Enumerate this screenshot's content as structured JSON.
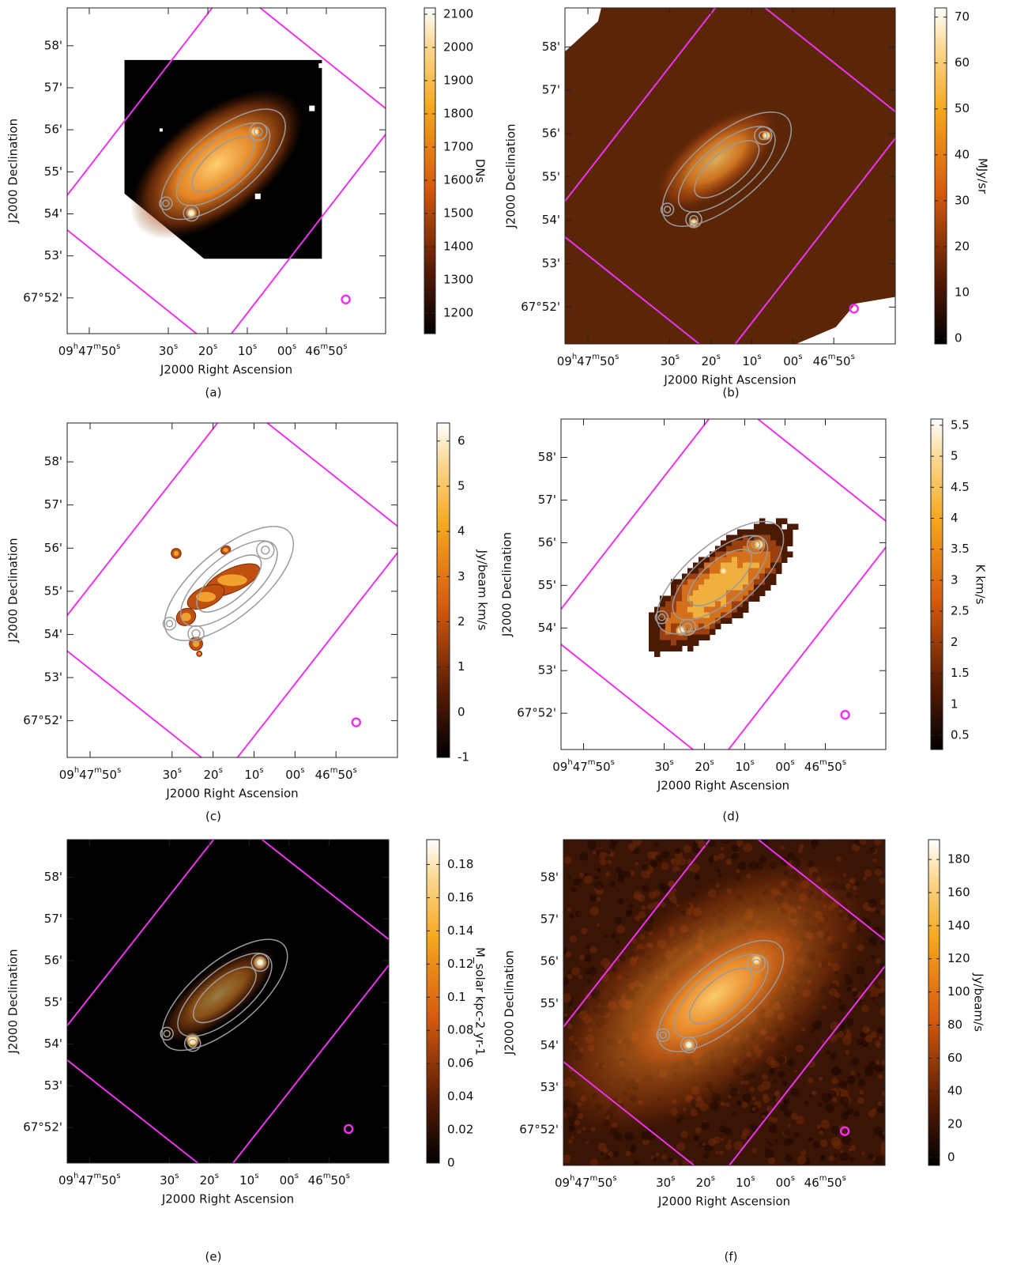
{
  "chart_data": [
    {
      "type": "image",
      "panel_label": "(a)",
      "xlabel": "J2000 Right Ascension",
      "ylabel": "J2000 Declination",
      "xlim": [
        55.6,
        -25
      ],
      "ylim": [
        51.15,
        58.9
      ],
      "xticks": [
        {
          "value": 50,
          "label": "09h47m50s"
        },
        {
          "value": 30,
          "label": "30s"
        },
        {
          "value": 20,
          "label": "20s"
        },
        {
          "value": 10,
          "label": "10s"
        },
        {
          "value": 0,
          "label": "00s"
        },
        {
          "value": -10,
          "label": "46m50s"
        }
      ],
      "yticks": [
        {
          "value": 58,
          "label": "58'"
        },
        {
          "value": 57,
          "label": "57'"
        },
        {
          "value": 56,
          "label": "56'"
        },
        {
          "value": 55,
          "label": "55'"
        },
        {
          "value": 54,
          "label": "54'"
        },
        {
          "value": 53,
          "label": "53'"
        },
        {
          "value": 52,
          "label": "67°52'"
        }
      ],
      "colorbar_label": "DNs",
      "clim": [
        1138,
        2119
      ],
      "cticks": [
        1200,
        1300,
        1400,
        1500,
        1600,
        1700,
        1800,
        1900,
        2000,
        2100
      ]
    },
    {
      "type": "image",
      "panel_label": "(b)",
      "xlabel": "J2000 Right Ascension",
      "ylabel": "J2000 Declination",
      "xlim": [
        55.6,
        -25
      ],
      "ylim": [
        51.15,
        58.9
      ],
      "xticks": [
        {
          "value": 50,
          "label": "09h47m50s"
        },
        {
          "value": 30,
          "label": "30s"
        },
        {
          "value": 20,
          "label": "20s"
        },
        {
          "value": 10,
          "label": "10s"
        },
        {
          "value": 0,
          "label": "00s"
        },
        {
          "value": -10,
          "label": "46m50s"
        }
      ],
      "yticks": [
        {
          "value": 58,
          "label": "58'"
        },
        {
          "value": 57,
          "label": "57'"
        },
        {
          "value": 56,
          "label": "56'"
        },
        {
          "value": 55,
          "label": "55'"
        },
        {
          "value": 54,
          "label": "54'"
        },
        {
          "value": 53,
          "label": "53'"
        },
        {
          "value": 52,
          "label": "67°52'"
        }
      ],
      "colorbar_label": "MJy/sr",
      "clim": [
        -1.2,
        72
      ],
      "cticks": [
        0,
        10,
        20,
        30,
        40,
        50,
        60,
        70
      ]
    },
    {
      "type": "image",
      "panel_label": "(c)",
      "xlabel": "J2000 Right Ascension",
      "ylabel": "J2000 Declination",
      "xlim": [
        55.6,
        -25
      ],
      "ylim": [
        51.15,
        58.9
      ],
      "xticks": [
        {
          "value": 50,
          "label": "09h47m50s"
        },
        {
          "value": 30,
          "label": "30s"
        },
        {
          "value": 20,
          "label": "20s"
        },
        {
          "value": 10,
          "label": "10s"
        },
        {
          "value": 0,
          "label": "00s"
        },
        {
          "value": -10,
          "label": "46m50s"
        }
      ],
      "yticks": [
        {
          "value": 58,
          "label": "58'"
        },
        {
          "value": 57,
          "label": "57'"
        },
        {
          "value": 56,
          "label": "56'"
        },
        {
          "value": 55,
          "label": "55'"
        },
        {
          "value": 54,
          "label": "54'"
        },
        {
          "value": 53,
          "label": "53'"
        },
        {
          "value": 52,
          "label": "67°52'"
        }
      ],
      "colorbar_label": "Jy/beam km/s",
      "clim": [
        -1,
        6.4
      ],
      "cticks": [
        -1,
        0,
        1,
        2,
        3,
        4,
        5,
        6
      ]
    },
    {
      "type": "image",
      "panel_label": "(d)",
      "xlabel": "J2000 Right Ascension",
      "ylabel": "J2000 Declination",
      "xlim": [
        55.6,
        -25
      ],
      "ylim": [
        51.15,
        58.9
      ],
      "xticks": [
        {
          "value": 50,
          "label": "09h47m50s"
        },
        {
          "value": 30,
          "label": "30s"
        },
        {
          "value": 20,
          "label": "20s"
        },
        {
          "value": 10,
          "label": "10s"
        },
        {
          "value": 0,
          "label": "00s"
        },
        {
          "value": -10,
          "label": "46m50s"
        }
      ],
      "yticks": [
        {
          "value": 58,
          "label": "58'"
        },
        {
          "value": 57,
          "label": "57'"
        },
        {
          "value": 56,
          "label": "56'"
        },
        {
          "value": 55,
          "label": "55'"
        },
        {
          "value": 54,
          "label": "54'"
        },
        {
          "value": 53,
          "label": "53'"
        },
        {
          "value": 52,
          "label": "67°52'"
        }
      ],
      "colorbar_label": "K km/s",
      "clim": [
        0.27,
        5.6
      ],
      "cticks": [
        0.5,
        1,
        1.5,
        2,
        2.5,
        3,
        3.5,
        4,
        4.5,
        5,
        5.5
      ]
    },
    {
      "type": "image",
      "panel_label": "(e)",
      "xlabel": "J2000 Right Ascension",
      "ylabel": "J2000 Declination",
      "xlim": [
        55.6,
        -25
      ],
      "ylim": [
        51.15,
        58.9
      ],
      "xticks": [
        {
          "value": 50,
          "label": "09h47m50s"
        },
        {
          "value": 30,
          "label": "30s"
        },
        {
          "value": 20,
          "label": "20s"
        },
        {
          "value": 10,
          "label": "10s"
        },
        {
          "value": 0,
          "label": "00s"
        },
        {
          "value": -10,
          "label": "46m50s"
        }
      ],
      "yticks": [
        {
          "value": 58,
          "label": "58'"
        },
        {
          "value": 57,
          "label": "57'"
        },
        {
          "value": 56,
          "label": "56'"
        },
        {
          "value": 55,
          "label": "55'"
        },
        {
          "value": 54,
          "label": "54'"
        },
        {
          "value": 53,
          "label": "53'"
        },
        {
          "value": 52,
          "label": "67°52'"
        }
      ],
      "colorbar_label": "M_solar kpc-2 yr-1",
      "clim": [
        0,
        0.195
      ],
      "cticks": [
        0,
        0.02,
        0.04,
        0.06,
        0.08,
        0.1,
        0.12,
        0.14,
        0.16,
        0.18
      ]
    },
    {
      "type": "image",
      "panel_label": "(f)",
      "xlabel": "J2000 Right Ascension",
      "ylabel": "J2000 Declination",
      "xlim": [
        55.6,
        -25
      ],
      "ylim": [
        51.15,
        58.9
      ],
      "xticks": [
        {
          "value": 50,
          "label": "09h47m50s"
        },
        {
          "value": 30,
          "label": "30s"
        },
        {
          "value": 20,
          "label": "20s"
        },
        {
          "value": 10,
          "label": "10s"
        },
        {
          "value": 0,
          "label": "00s"
        },
        {
          "value": -10,
          "label": "46m50s"
        }
      ],
      "yticks": [
        {
          "value": 58,
          "label": "58'"
        },
        {
          "value": 57,
          "label": "57'"
        },
        {
          "value": 56,
          "label": "56'"
        },
        {
          "value": 55,
          "label": "55'"
        },
        {
          "value": 54,
          "label": "54'"
        },
        {
          "value": 53,
          "label": "53'"
        },
        {
          "value": 52,
          "label": "67°52'"
        }
      ],
      "colorbar_label": "Jy/beam/s",
      "clim": [
        -4.8,
        192
      ],
      "cticks": [
        0,
        20,
        40,
        60,
        80,
        100,
        120,
        140,
        160,
        180
      ]
    }
  ]
}
